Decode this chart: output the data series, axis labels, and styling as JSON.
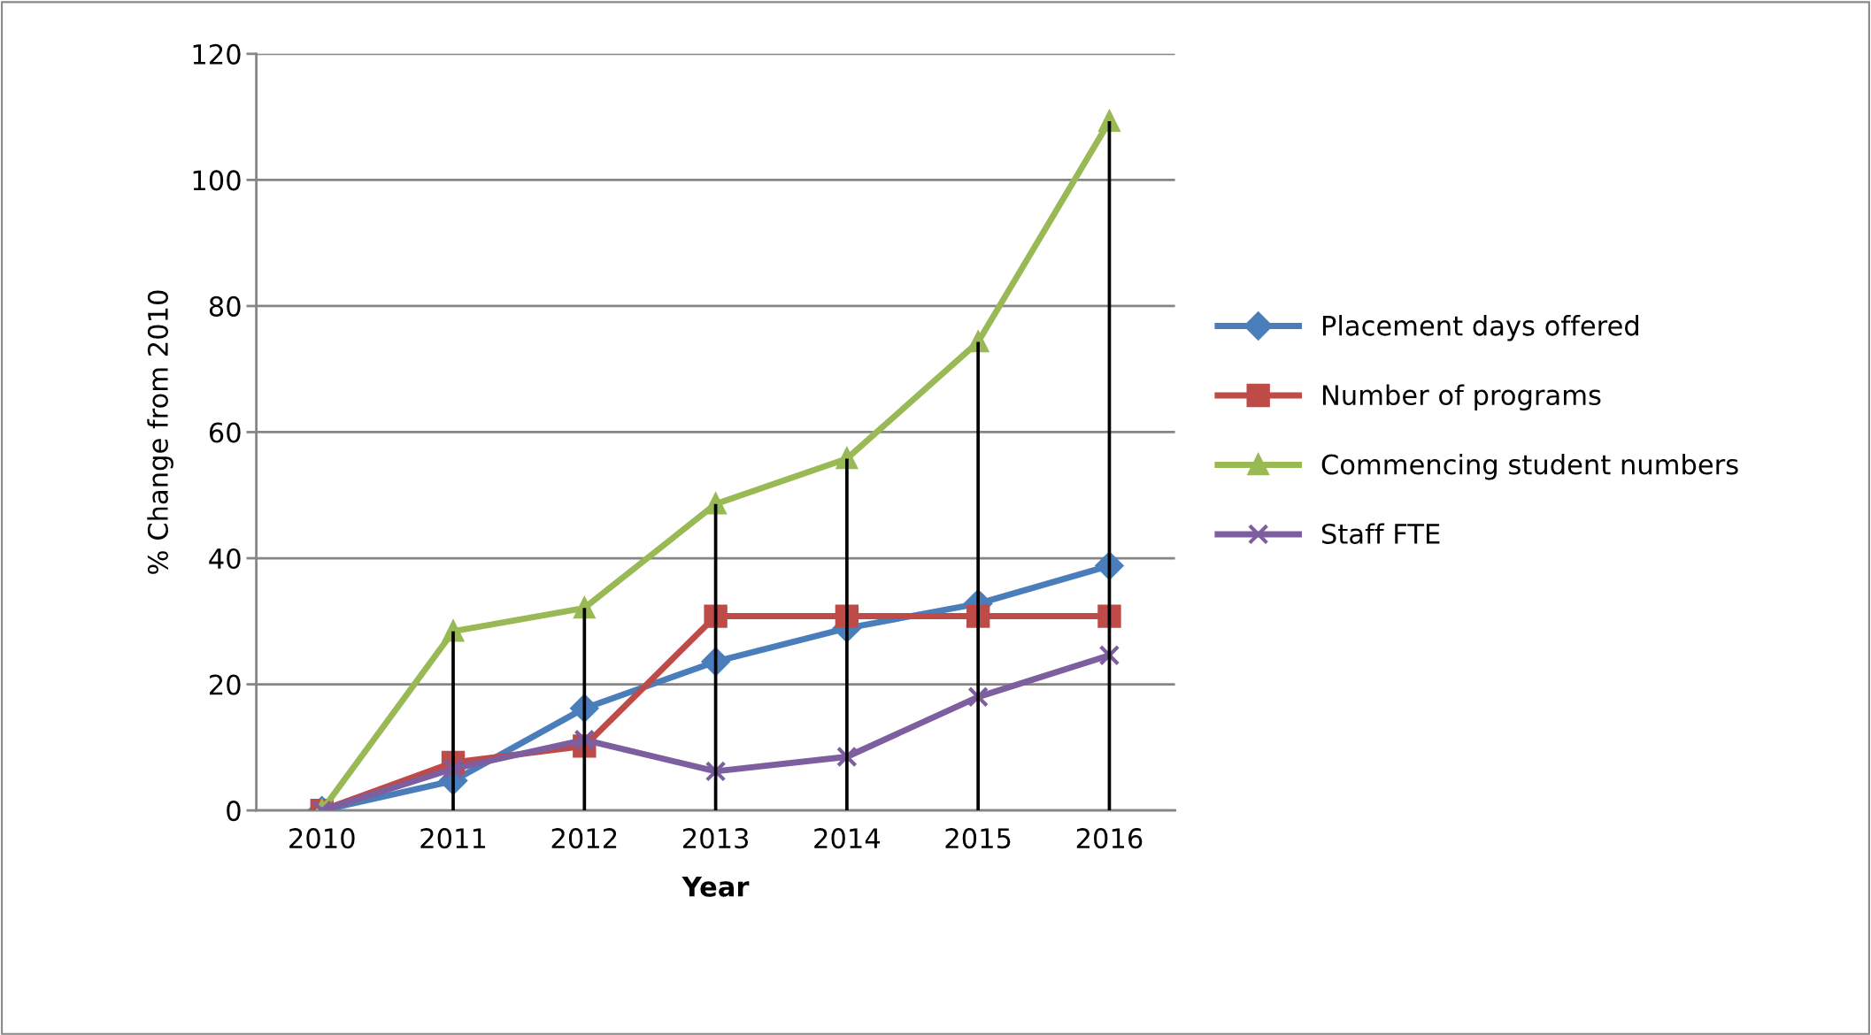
{
  "chart_data": {
    "type": "line",
    "xlabel": "Year",
    "ylabel": "% Change from 2010",
    "categories": [
      "2010",
      "2011",
      "2012",
      "2013",
      "2014",
      "2015",
      "2016"
    ],
    "series": [
      {
        "type": "bar",
        "color": "#000000",
        "values": [
          0,
          28.4,
          32.1,
          48.6,
          55.8,
          74.3,
          109.3
        ]
      },
      {
        "name": "Placement days offered",
        "color": "#4a7ebb",
        "marker": "diamond",
        "values": [
          0,
          4.7,
          16.2,
          23.6,
          28.9,
          32.8,
          38.8
        ]
      },
      {
        "name": "Number of programs",
        "color": "#be4b48",
        "marker": "square",
        "values": [
          0,
          7.6,
          10.2,
          30.8,
          30.8,
          30.8,
          30.8
        ]
      },
      {
        "name": "Commencing student numbers",
        "color": "#98b954",
        "marker": "triangle",
        "values": [
          0,
          28.4,
          32.1,
          48.6,
          55.8,
          74.3,
          109.3
        ]
      },
      {
        "name": "Staff FTE",
        "color": "#7d5fa0",
        "marker": "cross",
        "values": [
          0,
          6.6,
          11.2,
          6.2,
          8.5,
          18.0,
          24.6
        ]
      }
    ],
    "ylim": [
      0,
      120
    ],
    "yticks": [
      0,
      20,
      40,
      60,
      80,
      100,
      120
    ],
    "grid": "y",
    "legend": "right"
  }
}
